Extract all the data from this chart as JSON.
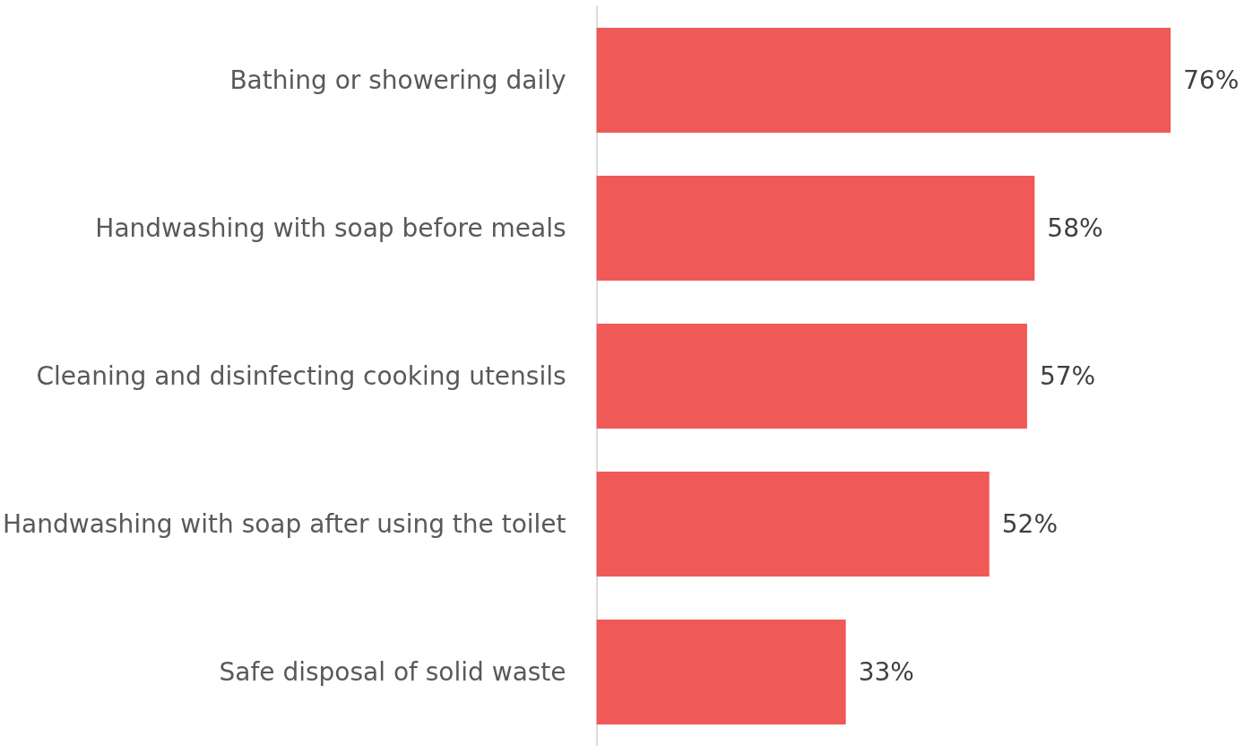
{
  "chart_data": {
    "type": "bar",
    "orientation": "horizontal",
    "categories": [
      "Bathing or showering daily",
      "Handwashing with soap before meals",
      "Cleaning and disinfecting cooking utensils",
      "Handwashing with soap after using the toilet",
      "Safe disposal of solid waste"
    ],
    "values": [
      76,
      58,
      57,
      52,
      33
    ],
    "value_labels": [
      "76%",
      "58%",
      "57%",
      "52%",
      "33%"
    ],
    "color": "#ef5a58"
  }
}
